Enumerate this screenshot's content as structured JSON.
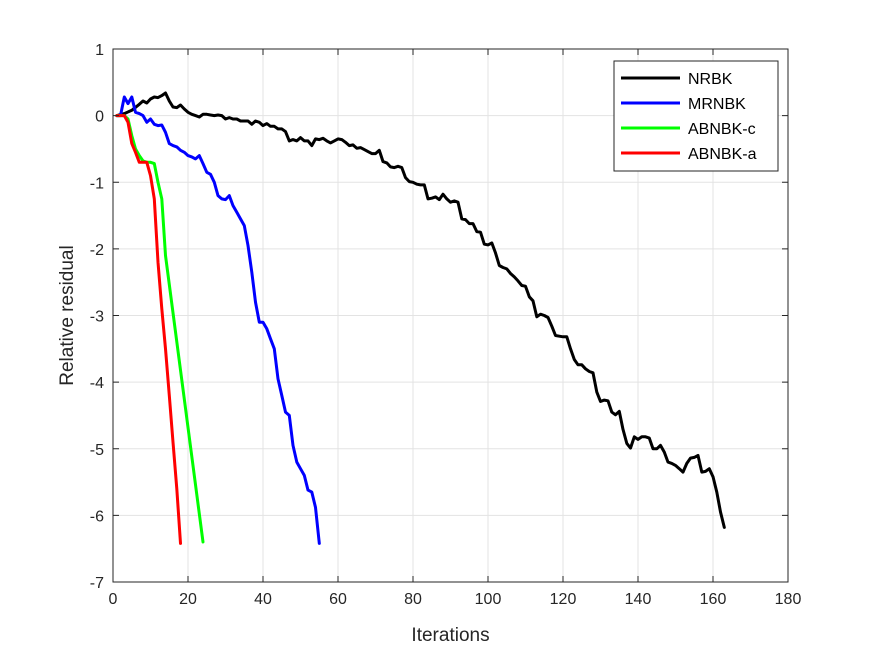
{
  "chart_data": {
    "type": "line",
    "title": "",
    "xlabel": "Iterations",
    "ylabel": "Relative residual",
    "xlim": [
      0,
      180
    ],
    "ylim": [
      -7,
      1
    ],
    "xticks": [
      "0",
      "20",
      "40",
      "60",
      "80",
      "100",
      "120",
      "140",
      "160",
      "180"
    ],
    "yticks": [
      "1",
      "0",
      "-1",
      "-2",
      "-3",
      "-4",
      "-5",
      "-6",
      "-7"
    ],
    "grid": true,
    "legend_position": "top-right",
    "series": [
      {
        "name": "NRBK",
        "color": "#000000",
        "points": [
          [
            1,
            0
          ],
          [
            3,
            0.03
          ],
          [
            5,
            0.08
          ],
          [
            7,
            0.17
          ],
          [
            8,
            0.22
          ],
          [
            9,
            0.19
          ],
          [
            10,
            0.25
          ],
          [
            11,
            0.28
          ],
          [
            12,
            0.27
          ],
          [
            13,
            0.3
          ],
          [
            14,
            0.34
          ],
          [
            15,
            0.22
          ],
          [
            16,
            0.13
          ],
          [
            17,
            0.12
          ],
          [
            18,
            0.16
          ],
          [
            19,
            0.1
          ],
          [
            20,
            0.05
          ],
          [
            21,
            0.02
          ],
          [
            22,
            0
          ],
          [
            23,
            -0.02
          ],
          [
            24,
            0.02
          ],
          [
            25,
            0.02
          ],
          [
            26,
            0.01
          ],
          [
            27,
            0
          ],
          [
            28,
            0.01
          ],
          [
            29,
            0
          ],
          [
            30,
            -0.05
          ],
          [
            31,
            -0.03
          ],
          [
            32,
            -0.05
          ],
          [
            33,
            -0.05
          ],
          [
            34,
            -0.08
          ],
          [
            35,
            -0.08
          ],
          [
            36,
            -0.08
          ],
          [
            37,
            -0.13
          ],
          [
            38,
            -0.08
          ],
          [
            39,
            -0.1
          ],
          [
            40,
            -0.15
          ],
          [
            41,
            -0.12
          ],
          [
            42,
            -0.16
          ],
          [
            43,
            -0.16
          ],
          [
            44,
            -0.2
          ],
          [
            45,
            -0.2
          ],
          [
            46,
            -0.24
          ],
          [
            47,
            -0.38
          ],
          [
            48,
            -0.36
          ],
          [
            49,
            -0.38
          ],
          [
            50,
            -0.33
          ],
          [
            51,
            -0.38
          ],
          [
            52,
            -0.38
          ],
          [
            53,
            -0.45
          ],
          [
            54,
            -0.35
          ],
          [
            55,
            -0.36
          ],
          [
            56,
            -0.34
          ],
          [
            57,
            -0.38
          ],
          [
            58,
            -0.41
          ],
          [
            59,
            -0.38
          ],
          [
            60,
            -0.35
          ],
          [
            61,
            -0.36
          ],
          [
            62,
            -0.4
          ],
          [
            63,
            -0.45
          ],
          [
            64,
            -0.44
          ],
          [
            65,
            -0.49
          ],
          [
            66,
            -0.48
          ],
          [
            67,
            -0.51
          ],
          [
            68,
            -0.54
          ],
          [
            69,
            -0.57
          ],
          [
            70,
            -0.57
          ],
          [
            71,
            -0.52
          ],
          [
            72,
            -0.69
          ],
          [
            73,
            -0.71
          ],
          [
            74,
            -0.77
          ],
          [
            75,
            -0.78
          ],
          [
            76,
            -0.76
          ],
          [
            77,
            -0.78
          ],
          [
            78,
            -0.93
          ],
          [
            79,
            -0.99
          ],
          [
            80,
            -1.0
          ],
          [
            81,
            -1.03
          ],
          [
            82,
            -1.04
          ],
          [
            83,
            -1.04
          ],
          [
            84,
            -1.25
          ],
          [
            85,
            -1.24
          ],
          [
            86,
            -1.22
          ],
          [
            87,
            -1.26
          ],
          [
            88,
            -1.18
          ],
          [
            89,
            -1.25
          ],
          [
            90,
            -1.3
          ],
          [
            91,
            -1.28
          ],
          [
            92,
            -1.3
          ],
          [
            93,
            -1.55
          ],
          [
            94,
            -1.56
          ],
          [
            95,
            -1.62
          ],
          [
            96,
            -1.62
          ],
          [
            97,
            -1.74
          ],
          [
            98,
            -1.75
          ],
          [
            99,
            -1.93
          ],
          [
            100,
            -1.94
          ],
          [
            101,
            -1.91
          ],
          [
            102,
            -2.06
          ],
          [
            103,
            -2.25
          ],
          [
            104,
            -2.28
          ],
          [
            105,
            -2.3
          ],
          [
            106,
            -2.37
          ],
          [
            107,
            -2.42
          ],
          [
            108,
            -2.48
          ],
          [
            109,
            -2.55
          ],
          [
            110,
            -2.56
          ],
          [
            111,
            -2.72
          ],
          [
            112,
            -2.78
          ],
          [
            113,
            -3.02
          ],
          [
            114,
            -2.98
          ],
          [
            115,
            -3.0
          ],
          [
            116,
            -3.03
          ],
          [
            117,
            -3.16
          ],
          [
            118,
            -3.3
          ],
          [
            119,
            -3.31
          ],
          [
            120,
            -3.32
          ],
          [
            121,
            -3.32
          ],
          [
            122,
            -3.5
          ],
          [
            123,
            -3.66
          ],
          [
            124,
            -3.74
          ],
          [
            125,
            -3.74
          ],
          [
            126,
            -3.8
          ],
          [
            127,
            -3.84
          ],
          [
            128,
            -3.86
          ],
          [
            129,
            -4.15
          ],
          [
            130,
            -4.29
          ],
          [
            131,
            -4.27
          ],
          [
            132,
            -4.28
          ],
          [
            133,
            -4.45
          ],
          [
            134,
            -4.49
          ],
          [
            135,
            -4.44
          ],
          [
            136,
            -4.71
          ],
          [
            137,
            -4.92
          ],
          [
            138,
            -4.99
          ],
          [
            139,
            -4.82
          ],
          [
            140,
            -4.86
          ],
          [
            141,
            -4.82
          ],
          [
            142,
            -4.82
          ],
          [
            143,
            -4.84
          ],
          [
            144,
            -5.0
          ],
          [
            145,
            -5.0
          ],
          [
            146,
            -4.95
          ],
          [
            147,
            -5.05
          ],
          [
            148,
            -5.2
          ],
          [
            149,
            -5.22
          ],
          [
            150,
            -5.25
          ],
          [
            151,
            -5.3
          ],
          [
            152,
            -5.35
          ],
          [
            153,
            -5.22
          ],
          [
            154,
            -5.14
          ],
          [
            155,
            -5.13
          ],
          [
            156,
            -5.1
          ],
          [
            157,
            -5.35
          ],
          [
            158,
            -5.34
          ],
          [
            159,
            -5.3
          ],
          [
            160,
            -5.42
          ],
          [
            161,
            -5.65
          ],
          [
            162,
            -5.95
          ],
          [
            163,
            -6.18
          ]
        ]
      },
      {
        "name": "MRNBK",
        "color": "#0000ff",
        "points": [
          [
            1,
            0
          ],
          [
            2,
            0
          ],
          [
            3,
            0.28
          ],
          [
            4,
            0.18
          ],
          [
            5,
            0.28
          ],
          [
            6,
            0.05
          ],
          [
            7,
            0.03
          ],
          [
            8,
            0.0
          ],
          [
            9,
            -0.1
          ],
          [
            10,
            -0.05
          ],
          [
            11,
            -0.13
          ],
          [
            12,
            -0.15
          ],
          [
            13,
            -0.14
          ],
          [
            14,
            -0.25
          ],
          [
            15,
            -0.42
          ],
          [
            16,
            -0.45
          ],
          [
            17,
            -0.47
          ],
          [
            18,
            -0.52
          ],
          [
            19,
            -0.55
          ],
          [
            20,
            -0.6
          ],
          [
            21,
            -0.62
          ],
          [
            22,
            -0.65
          ],
          [
            23,
            -0.6
          ],
          [
            24,
            -0.72
          ],
          [
            25,
            -0.85
          ],
          [
            26,
            -0.88
          ],
          [
            27,
            -1.0
          ],
          [
            28,
            -1.2
          ],
          [
            29,
            -1.25
          ],
          [
            30,
            -1.26
          ],
          [
            31,
            -1.2
          ],
          [
            32,
            -1.35
          ],
          [
            33,
            -1.45
          ],
          [
            34,
            -1.55
          ],
          [
            35,
            -1.65
          ],
          [
            36,
            -1.95
          ],
          [
            37,
            -2.35
          ],
          [
            38,
            -2.8
          ],
          [
            39,
            -3.1
          ],
          [
            40,
            -3.1
          ],
          [
            41,
            -3.2
          ],
          [
            42,
            -3.35
          ],
          [
            43,
            -3.5
          ],
          [
            44,
            -3.95
          ],
          [
            45,
            -4.2
          ],
          [
            46,
            -4.45
          ],
          [
            47,
            -4.5
          ],
          [
            48,
            -4.95
          ],
          [
            49,
            -5.2
          ],
          [
            50,
            -5.3
          ],
          [
            51,
            -5.4
          ],
          [
            52,
            -5.62
          ],
          [
            53,
            -5.65
          ],
          [
            54,
            -5.88
          ],
          [
            55,
            -6.42
          ]
        ]
      },
      {
        "name": "ABNBK-c",
        "color": "#00ff00",
        "points": [
          [
            1,
            0
          ],
          [
            3,
            0
          ],
          [
            4,
            -0.05
          ],
          [
            5,
            -0.3
          ],
          [
            6,
            -0.5
          ],
          [
            7,
            -0.6
          ],
          [
            8,
            -0.68
          ],
          [
            9,
            -0.7
          ],
          [
            10,
            -0.7
          ],
          [
            11,
            -0.72
          ],
          [
            12,
            -1.0
          ],
          [
            13,
            -1.25
          ],
          [
            14,
            -2.1
          ],
          [
            24,
            -6.4
          ]
        ]
      },
      {
        "name": "ABNBK-a",
        "color": "#ff0000",
        "points": [
          [
            1,
            0
          ],
          [
            3,
            0
          ],
          [
            4,
            -0.1
          ],
          [
            5,
            -0.42
          ],
          [
            6,
            -0.55
          ],
          [
            7,
            -0.7
          ],
          [
            8,
            -0.7
          ],
          [
            9,
            -0.7
          ],
          [
            10,
            -0.9
          ],
          [
            11,
            -1.25
          ],
          [
            12,
            -2.2
          ],
          [
            13,
            -2.9
          ],
          [
            14,
            -3.5
          ],
          [
            15,
            -4.2
          ],
          [
            16,
            -4.9
          ],
          [
            17,
            -5.6
          ],
          [
            18,
            -6.42
          ]
        ]
      }
    ]
  }
}
